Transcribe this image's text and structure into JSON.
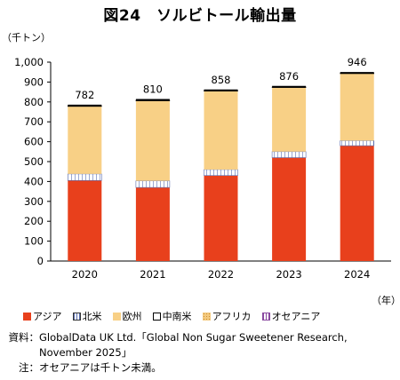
{
  "title": "図24　ソルビトール輸出量",
  "y_unit": "（千トン）",
  "x_unit": "（年）",
  "colors": {
    "asia": "#e8401c",
    "north_america": "#ffffff",
    "europe": "#f8d086",
    "central_south_america": "#ffffff",
    "africa": "#f3c97e",
    "oceania": "#ffffff",
    "top_line": "#000000"
  },
  "chart_data": {
    "type": "bar",
    "stacked": true,
    "title": "図24　ソルビトール輸出量",
    "ylabel": "（千トン）",
    "xlabel": "（年）",
    "ylim": [
      0,
      1000
    ],
    "yticks": [
      "0",
      "100",
      "200",
      "300",
      "400",
      "500",
      "600",
      "700",
      "800",
      "900",
      "1,000"
    ],
    "categories": [
      "2020",
      "2021",
      "2022",
      "2023",
      "2024"
    ],
    "totals": [
      782,
      810,
      858,
      876,
      946
    ],
    "series": [
      {
        "name": "アジア",
        "values": [
          405,
          370,
          430,
          520,
          580
        ]
      },
      {
        "name": "北米",
        "values": [
          33,
          33,
          30,
          30,
          25
        ]
      },
      {
        "name": "欧州",
        "values": [
          340,
          403,
          395,
          323,
          338
        ]
      },
      {
        "name": "中南米",
        "values": [
          2,
          2,
          2,
          2,
          2
        ]
      },
      {
        "name": "アフリカ",
        "values": [
          2,
          2,
          1,
          1,
          1
        ]
      },
      {
        "name": "オセアニア",
        "values": [
          0,
          0,
          0,
          0,
          0
        ]
      }
    ],
    "grid": false,
    "legend_position": "bottom"
  },
  "legend": [
    {
      "label": "アジア",
      "pattern": "solid-red"
    },
    {
      "label": "北米",
      "pattern": "hatch"
    },
    {
      "label": "欧州",
      "pattern": "solid-tan"
    },
    {
      "label": "中南米",
      "pattern": "outline"
    },
    {
      "label": "アフリカ",
      "pattern": "dots"
    },
    {
      "label": "オセアニア",
      "pattern": "cross"
    }
  ],
  "source": {
    "label": "資料：",
    "text": "GlobalData UK Ltd.「Global Non Sugar Sweetener Research, November 2025」"
  },
  "note": {
    "label": "注：",
    "text": "オセアニアは千トン未満。"
  }
}
